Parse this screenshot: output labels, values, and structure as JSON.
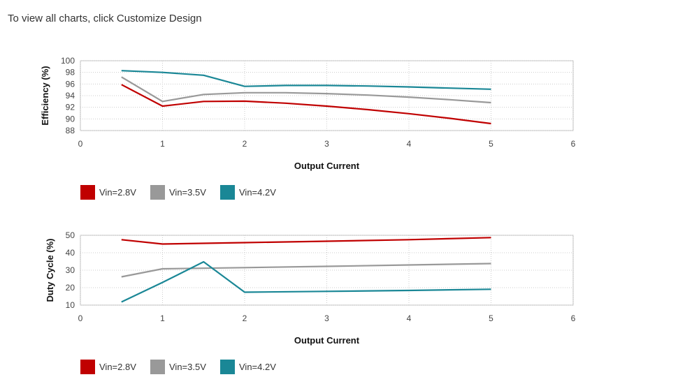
{
  "page": {
    "notice": "To view all charts, click Customize Design"
  },
  "colors": {
    "series1": "#c00000",
    "series2": "#999999",
    "series3": "#1a8796",
    "grid": "#cccccc",
    "axis": "#bbbbbb"
  },
  "chart_data": [
    {
      "type": "line",
      "ylabel": "Efficiency (%)",
      "xlabel": "Output Current",
      "xlim": [
        0,
        6
      ],
      "ylim": [
        88,
        100
      ],
      "xticks": [
        0,
        1,
        2,
        3,
        4,
        5,
        6
      ],
      "yticks": [
        88,
        90,
        92,
        94,
        96,
        98,
        100
      ],
      "grid": true,
      "legend_position": "bottom-left",
      "series": [
        {
          "name": "Vin=2.8V",
          "color": "#c00000",
          "x": [
            0.5,
            1,
            1.5,
            2,
            2.5,
            3,
            3.5,
            4,
            4.5,
            5
          ],
          "y": [
            95.9,
            92.2,
            93.0,
            93.05,
            92.7,
            92.2,
            91.6,
            90.9,
            90.1,
            89.2
          ]
        },
        {
          "name": "Vin=3.5V",
          "color": "#999999",
          "x": [
            0.5,
            1,
            1.5,
            2,
            2.5,
            3,
            3.5,
            4,
            4.5,
            5
          ],
          "y": [
            97.2,
            93.0,
            94.2,
            94.5,
            94.5,
            94.35,
            94.1,
            93.75,
            93.3,
            92.8
          ]
        },
        {
          "name": "Vin=4.2V",
          "color": "#1a8796",
          "x": [
            0.5,
            1,
            1.5,
            2,
            2.5,
            3,
            3.5,
            4,
            4.5,
            5
          ],
          "y": [
            98.3,
            98.0,
            97.5,
            95.6,
            95.75,
            95.75,
            95.65,
            95.5,
            95.3,
            95.1
          ]
        }
      ]
    },
    {
      "type": "line",
      "ylabel": "Duty Cycle (%)",
      "xlabel": "Output Current",
      "xlim": [
        0,
        6
      ],
      "ylim": [
        10,
        50
      ],
      "xticks": [
        0,
        1,
        2,
        3,
        4,
        5,
        6
      ],
      "yticks": [
        10,
        20,
        30,
        40,
        50
      ],
      "grid": true,
      "legend_position": "bottom-left",
      "series": [
        {
          "name": "Vin=2.8V",
          "color": "#c00000",
          "x": [
            0.5,
            1,
            2,
            3,
            4,
            5
          ],
          "y": [
            47.5,
            45.0,
            45.8,
            46.6,
            47.5,
            48.7
          ]
        },
        {
          "name": "Vin=3.5V",
          "color": "#999999",
          "x": [
            0.5,
            1,
            2,
            3,
            4,
            5
          ],
          "y": [
            26.2,
            30.8,
            31.5,
            32.2,
            33.0,
            33.8
          ]
        },
        {
          "name": "Vin=4.2V",
          "color": "#1a8796",
          "x": [
            0.5,
            1,
            1.5,
            2,
            3,
            4,
            5
          ],
          "y": [
            11.8,
            23.0,
            34.8,
            17.4,
            17.9,
            18.4,
            19.1
          ]
        }
      ]
    }
  ]
}
